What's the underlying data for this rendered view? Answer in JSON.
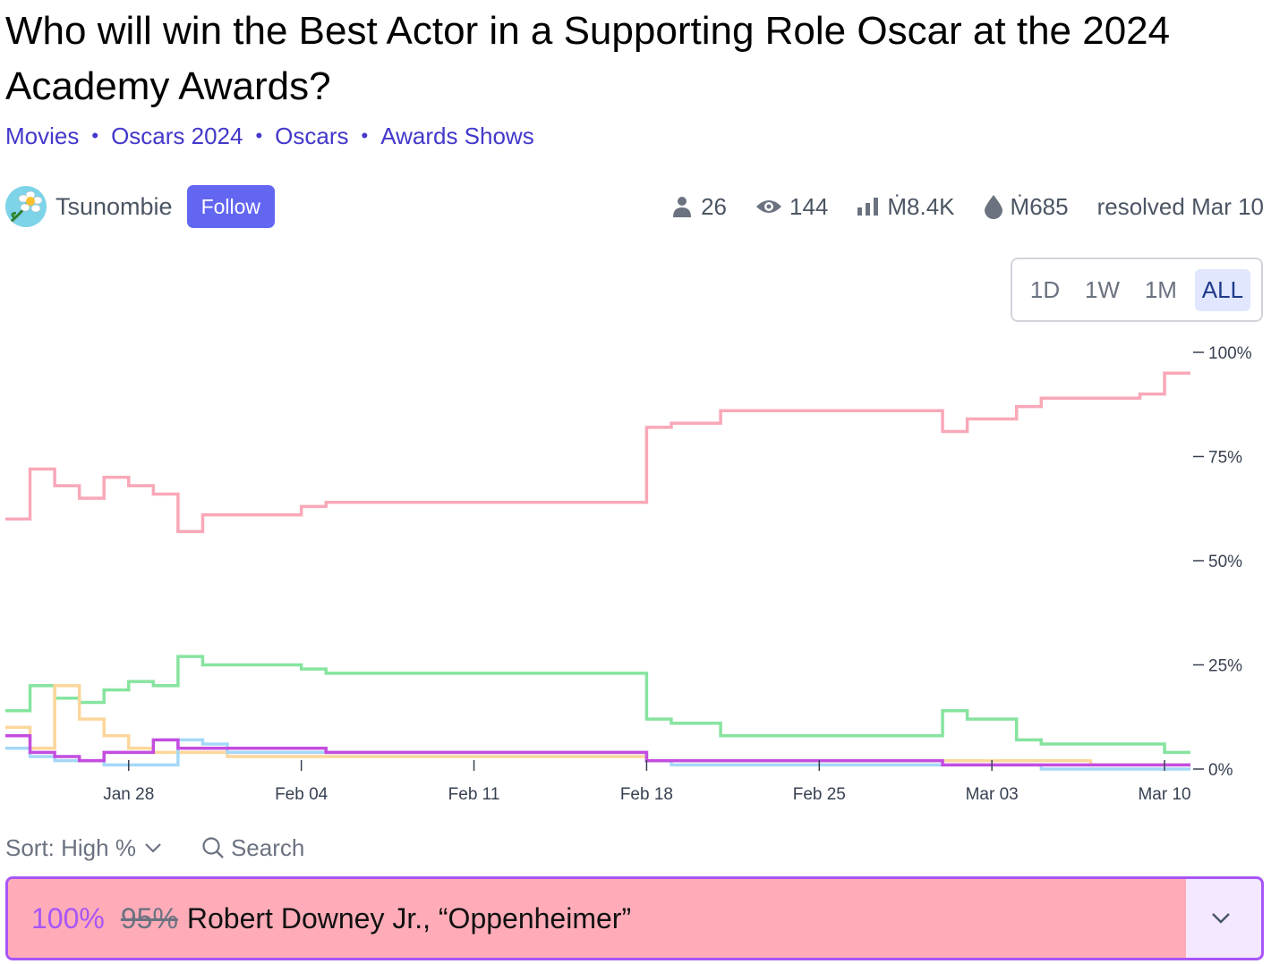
{
  "question": {
    "title": "Who will win the Best Actor in a Supporting Role Oscar at the 2024 Academy Awards?"
  },
  "tags": [
    "Movies",
    "Oscars 2024",
    "Oscars",
    "Awards Shows"
  ],
  "author": {
    "name": "Tsunombie",
    "follow_label": "Follow"
  },
  "stats": {
    "traders": "26",
    "views": "144",
    "volume": "Ṁ8.4K",
    "liquidity": "Ṁ685",
    "resolved": "resolved Mar 10"
  },
  "time_range": {
    "options": [
      "1D",
      "1W",
      "1M",
      "ALL"
    ],
    "selected": "ALL"
  },
  "controls": {
    "sort_label": "Sort: High %",
    "search_label": "Search"
  },
  "answer": {
    "percent": "100%",
    "previous_percent": "95%",
    "label": "Robert Downey Jr., “Oppenheimer”",
    "fill_fraction": 0.94
  },
  "chart_data": {
    "type": "line",
    "x_ticks": [
      "Jan 28",
      "Feb 04",
      "Feb 11",
      "Feb 18",
      "Feb 25",
      "Mar 03",
      "Mar 10"
    ],
    "y_ticks": [
      "0%",
      "25%",
      "50%",
      "75%",
      "100%"
    ],
    "ylim": [
      0,
      100
    ],
    "xlim": [
      "Jan 23",
      "Mar 11"
    ],
    "series": [
      {
        "color": "#f9a8b8",
        "x": [
          "Jan 23",
          "Jan 24",
          "Jan 25",
          "Jan 26",
          "Jan 27",
          "Jan 28",
          "Jan 29",
          "Jan 30",
          "Jan 31",
          "Feb 01",
          "Feb 04",
          "Feb 05",
          "Feb 11",
          "Feb 17",
          "Feb 18",
          "Feb 19",
          "Feb 21",
          "Feb 24",
          "Mar 01",
          "Mar 02",
          "Mar 04",
          "Mar 05",
          "Mar 07",
          "Mar 09",
          "Mar 10"
        ],
        "y": [
          60,
          72,
          68,
          65,
          70,
          68,
          66,
          57,
          61,
          61,
          63,
          64,
          64,
          64,
          82,
          83,
          86,
          86,
          81,
          84,
          87,
          89,
          89,
          90,
          95
        ]
      },
      {
        "color": "#86e49f",
        "x": [
          "Jan 23",
          "Jan 24",
          "Jan 25",
          "Jan 26",
          "Jan 27",
          "Jan 28",
          "Jan 29",
          "Jan 30",
          "Jan 31",
          "Feb 01",
          "Feb 04",
          "Feb 05",
          "Feb 11",
          "Feb 17",
          "Feb 18",
          "Feb 19",
          "Feb 21",
          "Feb 24",
          "Mar 01",
          "Mar 02",
          "Mar 04",
          "Mar 05",
          "Mar 07",
          "Mar 09",
          "Mar 10"
        ],
        "y": [
          14,
          20,
          17,
          16,
          19,
          21,
          20,
          27,
          25,
          25,
          24,
          23,
          23,
          23,
          12,
          11,
          8,
          8,
          14,
          12,
          7,
          6,
          6,
          6,
          4
        ]
      },
      {
        "color": "#fcd79b",
        "x": [
          "Jan 23",
          "Jan 24",
          "Jan 25",
          "Jan 26",
          "Jan 27",
          "Jan 28",
          "Jan 29",
          "Jan 30",
          "Jan 31",
          "Feb 01",
          "Feb 04",
          "Feb 05",
          "Feb 11",
          "Feb 17",
          "Feb 18",
          "Feb 19",
          "Feb 21",
          "Feb 24",
          "Mar 01",
          "Mar 02",
          "Mar 04",
          "Mar 05",
          "Mar 07",
          "Mar 09",
          "Mar 10"
        ],
        "y": [
          10,
          5,
          20,
          12,
          8,
          5,
          4,
          4,
          4,
          3,
          3,
          3,
          3,
          3,
          2,
          2,
          2,
          2,
          2,
          2,
          2,
          2,
          1,
          1,
          1
        ]
      },
      {
        "color": "#a5d8f7",
        "x": [
          "Jan 23",
          "Jan 24",
          "Jan 25",
          "Jan 26",
          "Jan 27",
          "Jan 28",
          "Jan 29",
          "Jan 30",
          "Jan 31",
          "Feb 01",
          "Feb 04",
          "Feb 05",
          "Feb 11",
          "Feb 17",
          "Feb 18",
          "Feb 19",
          "Feb 21",
          "Feb 24",
          "Mar 01",
          "Mar 02",
          "Mar 04",
          "Mar 05",
          "Mar 07",
          "Mar 09",
          "Mar 10"
        ],
        "y": [
          5,
          3,
          2,
          2,
          1,
          1,
          1,
          7,
          6,
          4,
          4,
          4,
          4,
          4,
          2,
          1,
          1,
          1,
          1,
          1,
          1,
          0,
          0,
          0,
          0
        ]
      },
      {
        "color": "#c44de0",
        "x": [
          "Jan 23",
          "Jan 24",
          "Jan 25",
          "Jan 26",
          "Jan 27",
          "Jan 28",
          "Jan 29",
          "Jan 30",
          "Jan 31",
          "Feb 01",
          "Feb 04",
          "Feb 05",
          "Feb 11",
          "Feb 17",
          "Feb 18",
          "Feb 19",
          "Feb 21",
          "Feb 24",
          "Mar 01",
          "Mar 02",
          "Mar 04",
          "Mar 05",
          "Mar 07",
          "Mar 09",
          "Mar 10"
        ],
        "y": [
          8,
          4,
          3,
          2,
          4,
          4,
          7,
          5,
          5,
          5,
          5,
          4,
          4,
          4,
          2,
          2,
          2,
          2,
          1,
          1,
          1,
          1,
          1,
          1,
          1
        ]
      }
    ]
  }
}
